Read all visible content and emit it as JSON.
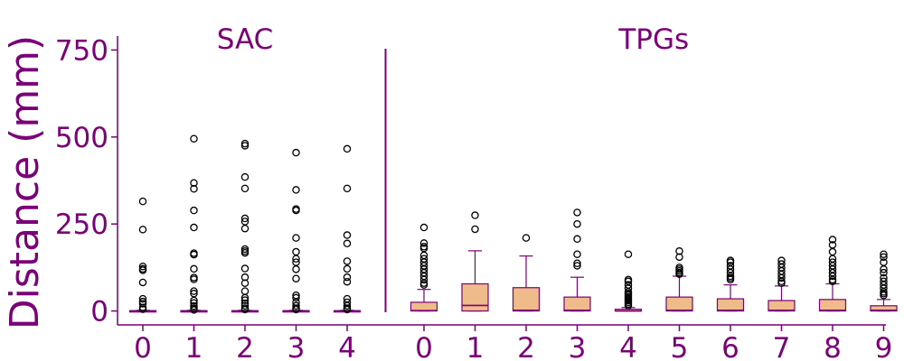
{
  "chart_data": {
    "type": "box",
    "ylabel": "Distance (mm)",
    "ylim": [
      -40,
      790
    ],
    "yticks": [
      0,
      250,
      500,
      750
    ],
    "colors": {
      "accent": "#7a0177",
      "box_fill": "#efbb8a",
      "outlier_edge": "#000000"
    },
    "groups": [
      {
        "label": "SAC",
        "boxes": [
          {
            "category": "0",
            "q1": 0,
            "median": 0,
            "q3": 1,
            "whisker_low": 0,
            "whisker_high": 2,
            "outliers": [
              315,
              234,
              128,
              121,
              117,
              82,
              35,
              27,
              21,
              10,
              5
            ]
          },
          {
            "category": "1",
            "q1": 0,
            "median": 0,
            "q3": 1,
            "whisker_low": 0,
            "whisker_high": 2,
            "outliers": [
              495,
              368,
              351,
              289,
              240,
              166,
              162,
              121,
              96,
              91,
              57,
              50,
              30,
              23,
              14,
              8,
              3
            ]
          },
          {
            "category": "2",
            "q1": 0,
            "median": 0,
            "q3": 1,
            "whisker_low": 0,
            "whisker_high": 2,
            "outliers": [
              481,
              475,
              385,
              352,
              266,
              257,
              237,
              178,
              172,
              167,
              122,
              97,
              80,
              57,
              38,
              31,
              22,
              15,
              8,
              4
            ]
          },
          {
            "category": "3",
            "q1": 0,
            "median": 0,
            "q3": 1,
            "whisker_low": 0,
            "whisker_high": 2,
            "outliers": [
              455,
              348,
              293,
              289,
              210,
              170,
              150,
              140,
              120,
              93,
              45,
              38,
              25,
              15,
              8,
              4
            ]
          },
          {
            "category": "4",
            "q1": 0,
            "median": 0,
            "q3": 1,
            "whisker_low": 0,
            "whisker_high": 2,
            "outliers": [
              466,
              352,
              218,
              194,
              143,
              121,
              97,
              84,
              35,
              25,
              15,
              8,
              4
            ]
          }
        ]
      },
      {
        "label": "TPGs",
        "boxes": [
          {
            "category": "0",
            "q1": 0,
            "median": 1,
            "q3": 25,
            "whisker_low": 0,
            "whisker_high": 62,
            "outliers": [
              240,
              195,
              185,
              180,
              160,
              150,
              140,
              130,
              120,
              110,
              100,
              90,
              80,
              75
            ]
          },
          {
            "category": "1",
            "q1": 0,
            "median": 16,
            "q3": 78,
            "whisker_low": 0,
            "whisker_high": 173,
            "outliers": [
              275,
              235
            ]
          },
          {
            "category": "2",
            "q1": 0,
            "median": 2,
            "q3": 67,
            "whisker_low": 0,
            "whisker_high": 158,
            "outliers": [
              210
            ]
          },
          {
            "category": "3",
            "q1": 0,
            "median": 2,
            "q3": 40,
            "whisker_low": 0,
            "whisker_high": 97,
            "outliers": [
              283,
              250,
              207,
              163,
              137,
              130
            ]
          },
          {
            "category": "4",
            "q1": 0,
            "median": 0,
            "q3": 5,
            "whisker_low": 0,
            "whisker_high": 10,
            "outliers": [
              163,
              90,
              85,
              75,
              65,
              55,
              50,
              45,
              40,
              35,
              30,
              25,
              20,
              15
            ]
          },
          {
            "category": "5",
            "q1": 0,
            "median": 2,
            "q3": 40,
            "whisker_low": 0,
            "whisker_high": 100,
            "outliers": [
              172,
              155,
              125,
              120,
              115,
              110,
              106
            ]
          },
          {
            "category": "6",
            "q1": 0,
            "median": 2,
            "q3": 35,
            "whisker_low": 0,
            "whisker_high": 75,
            "outliers": [
              145,
              140,
              130,
              120,
              110,
              100,
              95,
              90
            ]
          },
          {
            "category": "7",
            "q1": 0,
            "median": 2,
            "q3": 30,
            "whisker_low": 0,
            "whisker_high": 72,
            "outliers": [
              145,
              135,
              125,
              115,
              105,
              95,
              85,
              80
            ]
          },
          {
            "category": "8",
            "q1": 0,
            "median": 2,
            "q3": 33,
            "whisker_low": 0,
            "whisker_high": 78,
            "outliers": [
              205,
              190,
              170,
              150,
              140,
              130,
              120,
              110,
              100,
              90,
              85
            ]
          },
          {
            "category": "9",
            "q1": 0,
            "median": 2,
            "q3": 15,
            "whisker_low": 0,
            "whisker_high": 33,
            "outliers": [
              163,
              155,
              140,
              120,
              110,
              95,
              85,
              75,
              65,
              55,
              50,
              45
            ]
          }
        ]
      }
    ]
  }
}
